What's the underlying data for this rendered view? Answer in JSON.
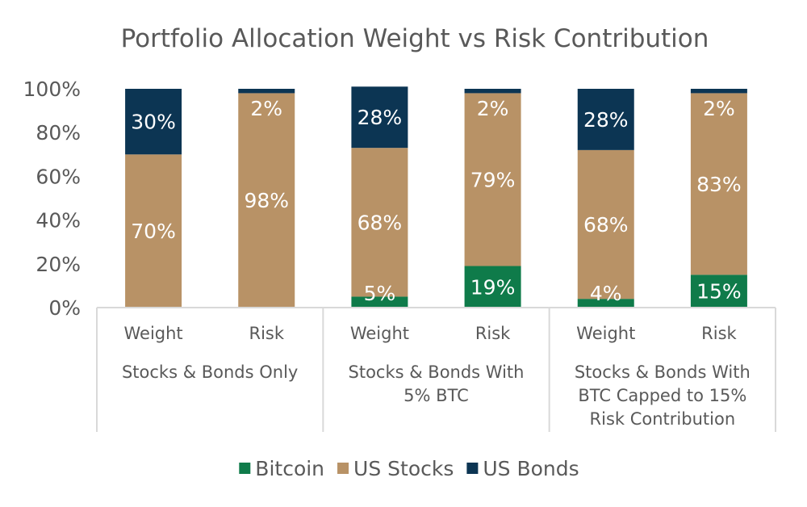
{
  "chart_data": {
    "type": "bar",
    "stacked": true,
    "percent": true,
    "title": "Portfolio Allocation Weight vs Risk Contribution",
    "ylim": [
      0,
      100
    ],
    "yticks": [
      0,
      20,
      40,
      60,
      80,
      100
    ],
    "ytick_labels": [
      "0%",
      "20%",
      "40%",
      "60%",
      "80%",
      "100%"
    ],
    "categories": [
      "Weight",
      "Risk",
      "Weight",
      "Risk",
      "Weight",
      "Risk"
    ],
    "groups": [
      {
        "label_lines": [
          "Stocks & Bonds Only"
        ],
        "span": 2
      },
      {
        "label_lines": [
          "Stocks & Bonds With",
          "5% BTC"
        ],
        "span": 2
      },
      {
        "label_lines": [
          "Stocks & Bonds With",
          "BTC Capped to 15%",
          "Risk Contribution"
        ],
        "span": 2
      }
    ],
    "series": [
      {
        "name": "Bitcoin",
        "color": "#0f7b4a",
        "values": [
          0,
          0,
          5,
          19,
          4,
          15
        ],
        "labels": [
          "",
          "",
          "5%",
          "19%",
          "4%",
          "15%"
        ]
      },
      {
        "name": "US Stocks",
        "color": "#b89266",
        "values": [
          70,
          98,
          68,
          79,
          68,
          83
        ],
        "labels": [
          "70%",
          "98%",
          "68%",
          "79%",
          "68%",
          "83%"
        ]
      },
      {
        "name": "US Bonds",
        "color": "#0c3553",
        "values": [
          30,
          2,
          28,
          2,
          28,
          2
        ],
        "labels": [
          "30%",
          "2%",
          "28%",
          "2%",
          "28%",
          "2%"
        ]
      }
    ],
    "legend": {
      "position": "bottom"
    }
  }
}
